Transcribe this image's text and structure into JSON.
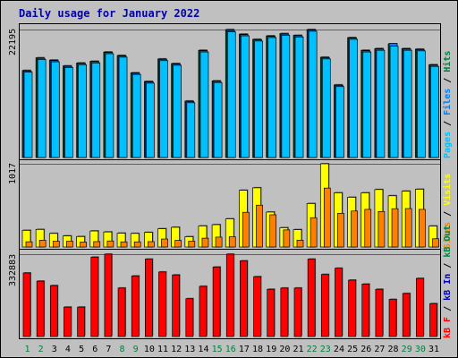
{
  "title": "Daily usage for January 2022",
  "colors": {
    "background": "#C0C0C0",
    "border": "#000000",
    "title": "#0000B0",
    "pages": "#00C0FF",
    "files": "#0080FF",
    "hits": "#008040",
    "visits": "#FFFF00",
    "sites": "#FF8000",
    "kb_out": "#008040",
    "kb_in": "#0000B0",
    "kb_f": "#FF0000",
    "weekend_day": "#008040",
    "weekday_day": "#000000"
  },
  "legend": {
    "hits": {
      "pages": "Pages",
      "files": "Files",
      "hits": "Hits"
    },
    "visits": {
      "sites": "Sites",
      "visits": "Visits"
    },
    "kbytes": {
      "kb_f": "kB F",
      "kb_in": "kB In",
      "kb_out": "kB Out"
    }
  },
  "chart_data": [
    {
      "type": "bar",
      "title": "Daily usage for January 2022",
      "categories": [
        "1",
        "2",
        "3",
        "4",
        "5",
        "6",
        "7",
        "8",
        "9",
        "10",
        "11",
        "12",
        "13",
        "14",
        "15",
        "16",
        "17",
        "18",
        "19",
        "20",
        "21",
        "22",
        "23",
        "24",
        "25",
        "26",
        "27",
        "28",
        "29",
        "30",
        "31"
      ],
      "weekend_days": [
        "1",
        "2",
        "8",
        "9",
        "15",
        "16",
        "22",
        "23",
        "29",
        "30"
      ],
      "ylim": [
        0,
        22195
      ],
      "y_tick_label": "22195",
      "series": [
        {
          "name": "Hits",
          "values": [
            15100,
            17300,
            16900,
            15900,
            16400,
            16700,
            18300,
            17700,
            14700,
            13200,
            17100,
            16300,
            9800,
            18600,
            13300,
            22195,
            21400,
            20500,
            21100,
            21500,
            21200,
            22195,
            17400,
            12600,
            20800,
            18600,
            18900,
            19700,
            18900,
            18800,
            16100
          ]
        },
        {
          "name": "Files",
          "values": [
            15000,
            17200,
            16800,
            15800,
            16300,
            16600,
            18200,
            17600,
            14600,
            13100,
            17000,
            16200,
            9700,
            18500,
            13200,
            22000,
            21300,
            20400,
            21000,
            21400,
            21100,
            22100,
            17300,
            12500,
            20700,
            18500,
            18800,
            19800,
            18800,
            18700,
            16000
          ]
        },
        {
          "name": "Pages",
          "values": [
            14800,
            17000,
            16600,
            15600,
            16100,
            16400,
            18000,
            17400,
            14400,
            12900,
            16800,
            16000,
            9500,
            18300,
            13000,
            21800,
            21100,
            20200,
            20800,
            21200,
            20900,
            21900,
            17100,
            12300,
            20500,
            18300,
            18600,
            19300,
            18600,
            18500,
            15800
          ]
        }
      ]
    },
    {
      "type": "bar",
      "categories": [
        "1",
        "2",
        "3",
        "4",
        "5",
        "6",
        "7",
        "8",
        "9",
        "10",
        "11",
        "12",
        "13",
        "14",
        "15",
        "16",
        "17",
        "18",
        "19",
        "20",
        "21",
        "22",
        "23",
        "24",
        "25",
        "26",
        "27",
        "28",
        "29",
        "30",
        "31"
      ],
      "ylim": [
        0,
        1017
      ],
      "y_tick_label": "1017",
      "series": [
        {
          "name": "Visits",
          "values": [
            204,
            215,
            166,
            135,
            128,
            196,
            184,
            169,
            166,
            178,
            223,
            241,
            126,
            258,
            273,
            344,
            693,
            723,
            427,
            236,
            212,
            531,
            1017,
            662,
            608,
            662,
            702,
            626,
            682,
            706,
            256
          ]
        },
        {
          "name": "Sites",
          "values": [
            64,
            83,
            71,
            71,
            61,
            66,
            74,
            63,
            63,
            66,
            98,
            81,
            71,
            108,
            121,
            125,
            424,
            511,
            394,
            209,
            83,
            358,
            720,
            412,
            440,
            460,
            434,
            468,
            470,
            460,
            101
          ]
        }
      ]
    },
    {
      "type": "bar",
      "categories": [
        "1",
        "2",
        "3",
        "4",
        "5",
        "6",
        "7",
        "8",
        "9",
        "10",
        "11",
        "12",
        "13",
        "14",
        "15",
        "16",
        "17",
        "18",
        "19",
        "20",
        "21",
        "22",
        "23",
        "24",
        "25",
        "26",
        "27",
        "28",
        "29",
        "30",
        "31"
      ],
      "ylim": [
        0,
        332883
      ],
      "y_tick_label": "332883",
      "series": [
        {
          "name": "kB F",
          "values": [
            257000,
            224000,
            206000,
            119000,
            119000,
            321000,
            332883,
            196000,
            245000,
            313000,
            261000,
            249000,
            153000,
            203000,
            281000,
            332883,
            306000,
            242000,
            191000,
            196000,
            196000,
            313000,
            251000,
            276000,
            228000,
            212000,
            191000,
            150000,
            174000,
            235000,
            133000
          ]
        }
      ]
    }
  ]
}
